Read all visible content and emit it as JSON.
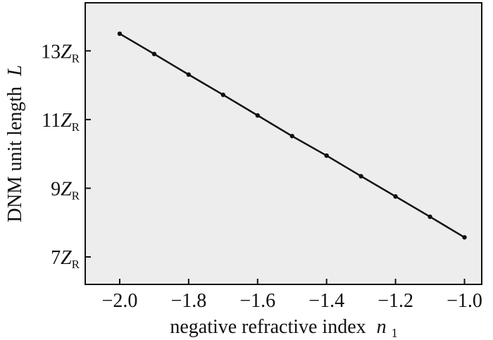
{
  "chart_data": {
    "type": "line",
    "xlabel": "negative refractive index",
    "xlabel_symbol": "n",
    "xlabel_subscript": "1",
    "ylabel": "DNM unit length",
    "ylabel_symbol": "L",
    "xlim": [
      -2.1,
      -0.95
    ],
    "ylim": [
      6.2,
      14.4
    ],
    "grid": false,
    "y_unit_symbol": "Z",
    "y_unit_subscript": "R",
    "x_ticks": [
      {
        "value": -2.0,
        "label": "−2.0"
      },
      {
        "value": -1.8,
        "label": "−1.8"
      },
      {
        "value": -1.6,
        "label": "−1.6"
      },
      {
        "value": -1.4,
        "label": "−1.4"
      },
      {
        "value": -1.2,
        "label": "−1.2"
      },
      {
        "value": -1.0,
        "label": "−1.0"
      }
    ],
    "y_ticks": [
      {
        "value": 13,
        "label": "13"
      },
      {
        "value": 11,
        "label": "11"
      },
      {
        "value": 9,
        "label": "9"
      },
      {
        "value": 7,
        "label": "7"
      }
    ],
    "series": [
      {
        "x": [
          -2.0,
          -1.9,
          -1.8,
          -1.7,
          -1.6,
          -1.5,
          -1.4,
          -1.3,
          -1.2,
          -1.1,
          -1.0
        ],
        "y": [
          13.5,
          12.91,
          12.31,
          11.72,
          11.12,
          10.52,
          9.95,
          9.35,
          8.76,
          8.17,
          7.57
        ]
      }
    ]
  },
  "colors": {
    "line": "#111111",
    "plot_bg": "#ededed",
    "frame": "#111111"
  }
}
